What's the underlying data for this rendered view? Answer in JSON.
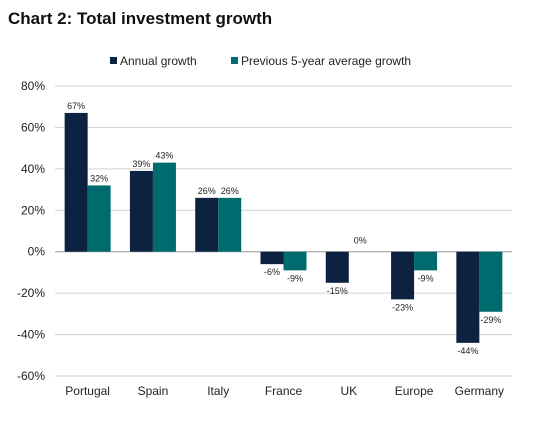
{
  "chart_data": {
    "type": "bar",
    "title": "Chart 2: Total investment growth",
    "xlabel": "",
    "ylabel": "",
    "categories": [
      "Portugal",
      "Spain",
      "Italy",
      "France",
      "UK",
      "Europe",
      "Germany"
    ],
    "series": [
      {
        "name": "Annual growth",
        "color": "#0d2240",
        "values": [
          67,
          39,
          26,
          -6,
          -15,
          -23,
          -44
        ],
        "labels": [
          "67%",
          "39%",
          "26%",
          "-6%",
          "-15%",
          "-23%",
          "-44%"
        ]
      },
      {
        "name": "Previous 5-year average growth",
        "color": "#006b6e",
        "values": [
          32,
          43,
          26,
          -9,
          0,
          -9,
          -29
        ],
        "labels": [
          "32%",
          "43%",
          "26%",
          "-9%",
          "0%",
          "-9%",
          "-29%"
        ]
      }
    ],
    "ylim": [
      -60,
      80
    ],
    "yticks": [
      80,
      60,
      40,
      20,
      0,
      -20,
      -40,
      -60
    ],
    "ytick_labels": [
      "80%",
      "60%",
      "40%",
      "20%",
      "0%",
      "-20%",
      "-40%",
      "-60%"
    ],
    "grid": true,
    "legend_position": "top-right"
  }
}
